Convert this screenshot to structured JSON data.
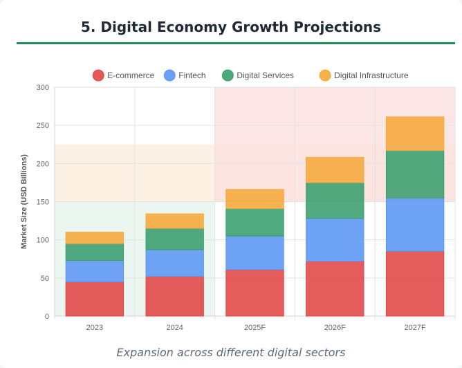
{
  "page": {
    "title": "5. Digital Economy Growth Projections",
    "subtitle": "Expansion across different digital sectors"
  },
  "colors": {
    "accent_rule": "#1f8a5b",
    "ecommerce": "#e04646",
    "fintech": "#5b96f5",
    "digital_services": "#3a9e6e",
    "digital_infrastructure": "#f5a83a",
    "band_green": "#e6f4ec",
    "band_orange": "#fdeede",
    "band_red": "#fbe2e0"
  },
  "chart_data": {
    "type": "bar",
    "stacked": true,
    "categories": [
      "2023",
      "2024",
      "2025F",
      "2026F",
      "2027F"
    ],
    "series": [
      {
        "name": "E-commerce",
        "color": "#e04646",
        "values": [
          45,
          52,
          61,
          72,
          85
        ]
      },
      {
        "name": "Fintech",
        "color": "#5b96f5",
        "values": [
          28,
          35,
          44,
          56,
          70
        ]
      },
      {
        "name": "Digital Services",
        "color": "#3a9e6e",
        "values": [
          22,
          28,
          36,
          47,
          62
        ]
      },
      {
        "name": "Digital Infrastructure",
        "color": "#f5a83a",
        "values": [
          15,
          19,
          25,
          33,
          44
        ]
      }
    ],
    "xlabel": "",
    "ylabel": "Market Size (USD Billions)",
    "ylim": [
      0,
      300
    ],
    "yticks": [
      0,
      50,
      100,
      150,
      200,
      250,
      300
    ],
    "grid": true,
    "legend": "top",
    "background_bands": [
      {
        "y_range": [
          0,
          150
        ],
        "x_range": [
          0,
          1.5
        ],
        "color": "#e6f4ec"
      },
      {
        "y_range": [
          150,
          225
        ],
        "x_range": [
          0,
          4.5
        ],
        "color": "#fdeede"
      },
      {
        "y_range": [
          150,
          300
        ],
        "x_range": [
          1.5,
          4.5
        ],
        "color": "#fbe2e0"
      }
    ]
  }
}
